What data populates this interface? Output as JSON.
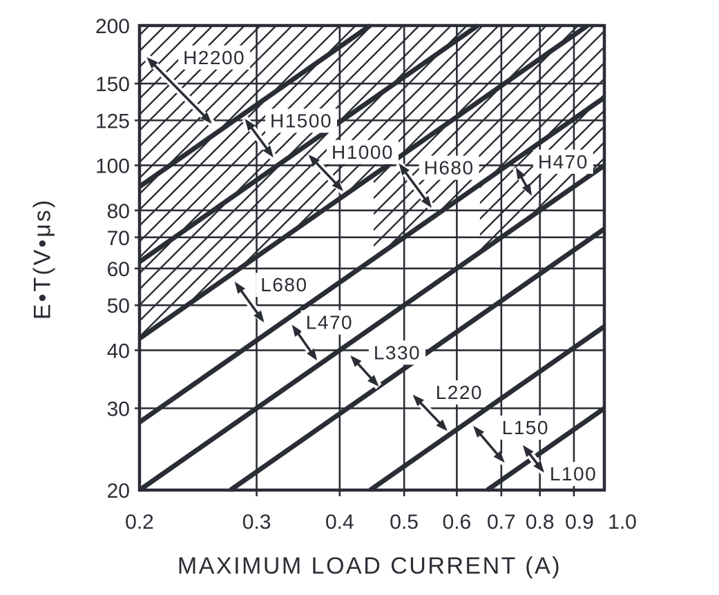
{
  "colors": {
    "ink": "#2a2d35",
    "background": "#ffffff"
  },
  "chart_data": {
    "type": "line",
    "description": "Inductor selection guide: E·T versus maximum load current, log-log scales, diagonal constant-ratio boundary lines, hatched H-region",
    "x_axis": {
      "label": "MAXIMUM LOAD CURRENT (A)",
      "scale": "log",
      "range": [
        0.2,
        1.0
      ],
      "ticks": [
        "0.2",
        "0.3",
        "0.4",
        "0.5",
        "0.6",
        "0.7",
        "0.8",
        "0.9",
        "1.0"
      ],
      "tick_values": [
        0.2,
        0.3,
        0.4,
        0.5,
        0.6,
        0.7,
        0.8,
        0.9,
        1.0
      ]
    },
    "y_axis": {
      "label": "E•T(V•μs)",
      "scale": "log",
      "range": [
        20,
        200
      ],
      "ticks": [
        "200",
        "150",
        "125",
        "100",
        "80",
        "70",
        "60",
        "50",
        "40",
        "30",
        "20"
      ],
      "tick_values": [
        200,
        150,
        125,
        100,
        80,
        70,
        60,
        50,
        40,
        30,
        20
      ]
    },
    "boundary_lines": [
      {
        "relation": "E·T = k × I",
        "k": 450
      },
      {
        "relation": "E·T = k × I",
        "k": 310
      },
      {
        "relation": "E·T = k × I",
        "k": 212
      },
      {
        "relation": "E·T = k × I",
        "k": 140
      },
      {
        "relation": "E·T = k × I",
        "k": 100
      },
      {
        "relation": "E·T = k × I",
        "k": 73
      },
      {
        "relation": "E·T = k × I",
        "k": 45
      },
      {
        "relation": "E·T = k × I",
        "k": 30
      }
    ],
    "bands": [
      {
        "label": "H2200",
        "hatched": true,
        "label_at": [
          0.259,
          171
        ],
        "arrow": [
          [
            0.205,
            171
          ],
          [
            0.257,
            123
          ]
        ]
      },
      {
        "label": "H1500",
        "hatched": true,
        "label_at": [
          0.35,
          125
        ],
        "arrow": [
          [
            0.288,
            126
          ],
          [
            0.318,
            104
          ]
        ]
      },
      {
        "label": "H1000",
        "hatched": true,
        "label_at": [
          0.433,
          107
        ],
        "arrow": [
          [
            0.359,
            105.5
          ],
          [
            0.405,
            88
          ]
        ]
      },
      {
        "label": "H680",
        "hatched": true,
        "label_at": [
          0.584,
          99
        ],
        "arrow": [
          [
            0.491,
            101
          ],
          [
            0.55,
            81
          ]
        ]
      },
      {
        "label": "H470",
        "hatched": true,
        "label_at": [
          0.867,
          102
        ],
        "arrow": [
          [
            0.736,
            99
          ],
          [
            0.778,
            86
          ]
        ]
      },
      {
        "label": "L680",
        "hatched": false,
        "label_at": [
          0.33,
          55.4
        ],
        "arrow": [
          [
            0.278,
            56.2
          ],
          [
            0.308,
            45.9
          ]
        ]
      },
      {
        "label": "L470",
        "hatched": false,
        "label_at": [
          0.386,
          46
        ],
        "arrow": [
          [
            0.339,
            45.4
          ],
          [
            0.37,
            38.0
          ]
        ]
      },
      {
        "label": "L330",
        "hatched": false,
        "label_at": [
          0.488,
          39.6
        ],
        "arrow": [
          [
            0.415,
            39.0
          ],
          [
            0.458,
            33.4
          ]
        ]
      },
      {
        "label": "L220",
        "hatched": false,
        "label_at": [
          0.605,
          32.5
        ],
        "arrow": [
          [
            0.515,
            32.1
          ],
          [
            0.581,
            26.8
          ]
        ]
      },
      {
        "label": "L150",
        "hatched": false,
        "label_at": [
          0.761,
          27.3
        ],
        "arrow": [
          [
            0.635,
            27.5
          ],
          [
            0.708,
            22.9
          ]
        ]
      },
      {
        "label": "L100",
        "hatched": false,
        "label_at": [
          0.898,
          21.7
        ],
        "arrow": [
          [
            0.754,
            25.0
          ],
          [
            0.812,
            21.8
          ]
        ]
      }
    ],
    "hatched_region": {
      "style": "diagonal-hatch",
      "polygon": [
        [
          0.2,
          200
        ],
        [
          1.0,
          200
        ],
        [
          1.0,
          100
        ],
        [
          0.65,
          65
        ],
        [
          0.65,
          91
        ],
        [
          0.45,
          63
        ],
        [
          0.45,
          95.4
        ],
        [
          0.2,
          42.4
        ]
      ]
    }
  }
}
